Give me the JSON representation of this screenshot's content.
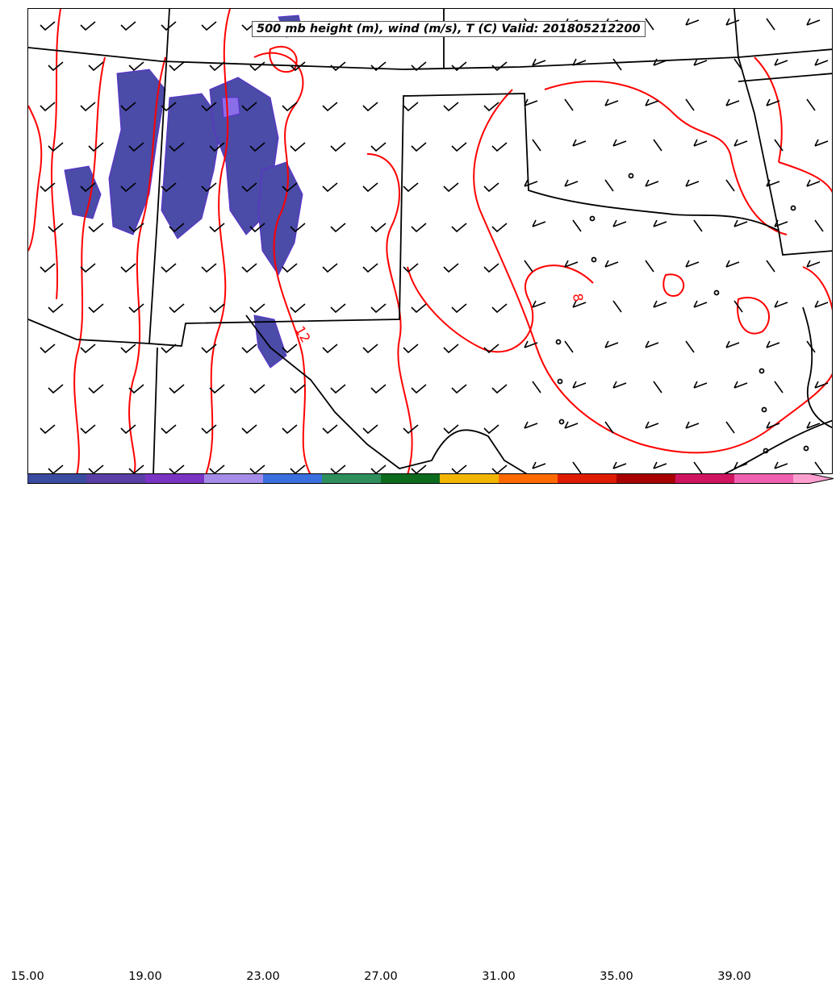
{
  "title": "500 mb height (m), wind (m/s), T (C) Valid: 201805212200",
  "contour_labels": [
    "8",
    "12"
  ],
  "colorbar": {
    "tick_labels": [
      "15.00",
      "19.00",
      "23.00",
      "27.00",
      "31.00",
      "35.00",
      "39.00"
    ],
    "min": 15,
    "max": 41,
    "colors": [
      "#3b4ba0",
      "#5a3fa6",
      "#7a34c4",
      "#a58ce8",
      "#3a6fe0",
      "#2e8f5c",
      "#0d6b1e",
      "#f2b600",
      "#ff6a00",
      "#e01c00",
      "#a80000",
      "#cf1560",
      "#f060b0",
      "#ff9fd0"
    ]
  },
  "colors": {
    "temperature_contour": "#ff0000",
    "state_borders": "#000000",
    "precip_fill": "#4b4ba8",
    "precip_edge": "#5c2fd0"
  }
}
